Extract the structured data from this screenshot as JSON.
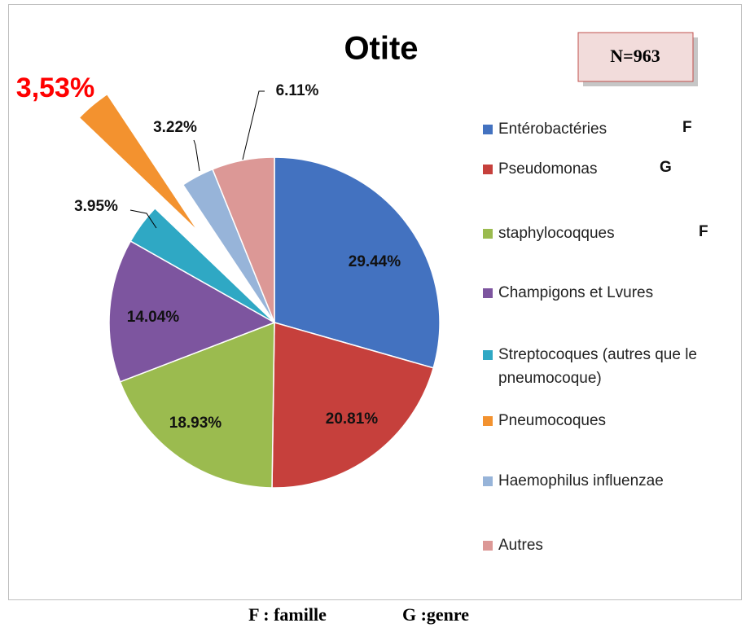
{
  "chart_data": {
    "type": "pie",
    "title": "Otite",
    "annotation": "N=963",
    "categories": [
      "Entérobactéries",
      "Pseudomonas",
      "staphylocoqques",
      "Champigons et Lvures",
      "Streptocoques (autres que le pneumocoque)",
      "Pneumocoques",
      "Haemophilus influenzae",
      "Autres"
    ],
    "values": [
      29.44,
      20.81,
      18.93,
      14.04,
      3.95,
      3.53,
      3.22,
      6.11
    ],
    "value_labels": [
      "29.44%",
      "20.81%",
      "18.93%",
      "14.04%",
      "3.95%",
      "3,53%",
      "3.22%",
      "6.11%"
    ],
    "colors": [
      "#4372c0",
      "#c6403c",
      "#9bbb4f",
      "#7d559f",
      "#2fa8c4",
      "#f3922f",
      "#97b4d9",
      "#dc9896"
    ],
    "exploded": [
      false,
      false,
      false,
      false,
      false,
      true,
      false,
      false
    ],
    "legend_markers": [
      "F",
      "G",
      "F",
      null,
      null,
      null,
      null,
      null
    ],
    "legend": "right",
    "footnote": [
      "F : famille",
      "G :genre"
    ]
  }
}
